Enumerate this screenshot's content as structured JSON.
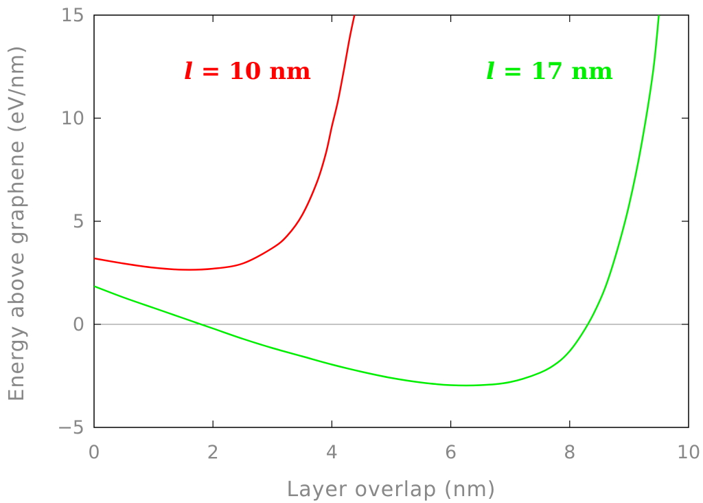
{
  "chart_data": {
    "type": "line",
    "title": "",
    "xlabel": "Layer overlap (nm)",
    "ylabel": "Energy above graphene (eV/nm)",
    "xlim": [
      0,
      10
    ],
    "ylim": [
      -5,
      15
    ],
    "xticks": [
      0,
      2,
      4,
      6,
      8,
      10
    ],
    "yticks": [
      -5,
      0,
      5,
      10,
      15
    ],
    "xtick_labels": [
      "0",
      "2",
      "4",
      "6",
      "8",
      "10"
    ],
    "ytick_labels": [
      "−5",
      "0",
      "5",
      "10",
      "15"
    ],
    "grid": false,
    "zero_line": true,
    "series": [
      {
        "label_var": "l",
        "label_rest": " = 10 nm",
        "color": "#ff0000",
        "x": [
          0,
          0.5,
          1.0,
          1.5,
          2.0,
          2.5,
          3.0,
          3.25,
          3.5,
          3.75,
          3.9,
          4.0,
          4.1,
          4.2,
          4.3,
          4.38
        ],
        "y": [
          3.2,
          2.95,
          2.75,
          2.65,
          2.7,
          2.95,
          3.7,
          4.3,
          5.3,
          6.9,
          8.3,
          9.6,
          10.8,
          12.3,
          13.9,
          15.0
        ]
      },
      {
        "label_var": "l",
        "label_rest": " = 17 nm",
        "color": "#00ee00",
        "x": [
          0,
          0.5,
          1.0,
          1.5,
          2.0,
          2.5,
          3.0,
          3.5,
          4.0,
          4.5,
          5.0,
          5.5,
          6.0,
          6.5,
          7.0,
          7.5,
          7.8,
          8.0,
          8.2,
          8.4,
          8.6,
          8.8,
          9.0,
          9.2,
          9.4,
          9.5
        ],
        "y": [
          1.85,
          1.3,
          0.8,
          0.3,
          -0.2,
          -0.7,
          -1.15,
          -1.55,
          -1.95,
          -2.3,
          -2.6,
          -2.82,
          -2.95,
          -2.95,
          -2.8,
          -2.35,
          -1.85,
          -1.3,
          -0.5,
          0.5,
          1.8,
          3.6,
          5.8,
          8.6,
          12.2,
          15.0
        ]
      }
    ]
  }
}
